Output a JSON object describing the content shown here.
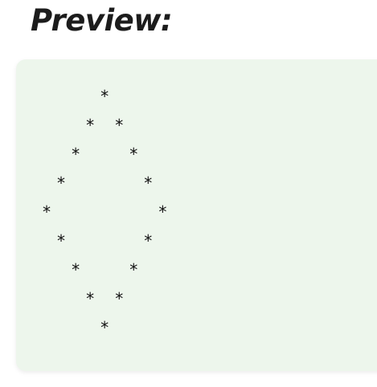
{
  "heading": "Preview:",
  "preview": {
    "output": "    *\n   * *\n  *   *\n *     *\n*       *\n *     *\n  *   *\n   * *\n    *"
  }
}
